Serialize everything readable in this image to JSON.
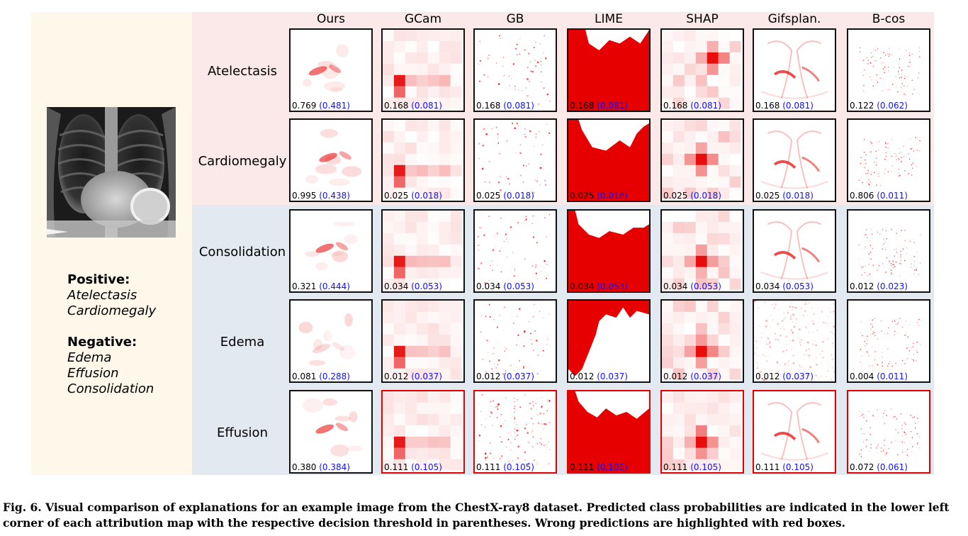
{
  "figure": {
    "columns": [
      "Ours",
      "GCam",
      "GB",
      "LIME",
      "SHAP",
      "Gifsplan.",
      "B-cos"
    ],
    "legend": {
      "positive_title": "Positive:",
      "positive_items": [
        "Atelectasis",
        "Cardiomegaly"
      ],
      "negative_title": "Negative:",
      "negative_items": [
        "Edema",
        "Effusion",
        "Consolidation"
      ]
    },
    "rows": [
      {
        "label": "Atelectasis",
        "group": "positive",
        "cells": [
          {
            "prob": "0.769",
            "thr": "(0.481)",
            "wrong": false
          },
          {
            "prob": "0.168",
            "thr": "(0.081)",
            "wrong": false
          },
          {
            "prob": "0.168",
            "thr": "(0.081)",
            "wrong": false
          },
          {
            "prob": "0.168",
            "thr": "(0.081)",
            "wrong": false
          },
          {
            "prob": "0.168",
            "thr": "(0.081)",
            "wrong": false
          },
          {
            "prob": "0.168",
            "thr": "(0.081)",
            "wrong": false
          },
          {
            "prob": "0.122",
            "thr": "(0.062)",
            "wrong": false
          }
        ]
      },
      {
        "label": "Cardiomegaly",
        "group": "positive",
        "cells": [
          {
            "prob": "0.995",
            "thr": "(0.438)",
            "wrong": false
          },
          {
            "prob": "0.025",
            "thr": "(0.018)",
            "wrong": false
          },
          {
            "prob": "0.025",
            "thr": "(0.018)",
            "wrong": false
          },
          {
            "prob": "0.025",
            "thr": "(0.018)",
            "wrong": false
          },
          {
            "prob": "0.025",
            "thr": "(0.018)",
            "wrong": false
          },
          {
            "prob": "0.025",
            "thr": "(0.018)",
            "wrong": false
          },
          {
            "prob": "0.806",
            "thr": "(0.011)",
            "wrong": false
          }
        ]
      },
      {
        "label": "Consolidation",
        "group": "negative",
        "cells": [
          {
            "prob": "0.321",
            "thr": "(0.444)",
            "wrong": false
          },
          {
            "prob": "0.034",
            "thr": "(0.053)",
            "wrong": false
          },
          {
            "prob": "0.034",
            "thr": "(0.053)",
            "wrong": false
          },
          {
            "prob": "0.034",
            "thr": "(0.053)",
            "wrong": false
          },
          {
            "prob": "0.034",
            "thr": "(0.053)",
            "wrong": false
          },
          {
            "prob": "0.034",
            "thr": "(0.053)",
            "wrong": false
          },
          {
            "prob": "0.012",
            "thr": "(0.023)",
            "wrong": false
          }
        ]
      },
      {
        "label": "Edema",
        "group": "negative",
        "cells": [
          {
            "prob": "0.081",
            "thr": "(0.288)",
            "wrong": false
          },
          {
            "prob": "0.012",
            "thr": "(0.037)",
            "wrong": false
          },
          {
            "prob": "0.012",
            "thr": "(0.037)",
            "wrong": false
          },
          {
            "prob": "0.012",
            "thr": "(0.037)",
            "wrong": false
          },
          {
            "prob": "0.012",
            "thr": "(0.037)",
            "wrong": false
          },
          {
            "prob": "0.012",
            "thr": "(0.037)",
            "wrong": false
          },
          {
            "prob": "0.004",
            "thr": "(0.011)",
            "wrong": false
          }
        ]
      },
      {
        "label": "Effusion",
        "group": "negative",
        "cells": [
          {
            "prob": "0.380",
            "thr": "(0.384)",
            "wrong": false
          },
          {
            "prob": "0.111",
            "thr": "(0.105)",
            "wrong": true
          },
          {
            "prob": "0.111",
            "thr": "(0.105)",
            "wrong": true
          },
          {
            "prob": "0.111",
            "thr": "(0.105)",
            "wrong": true
          },
          {
            "prob": "0.111",
            "thr": "(0.105)",
            "wrong": true
          },
          {
            "prob": "0.111",
            "thr": "(0.105)",
            "wrong": true
          },
          {
            "prob": "0.072",
            "thr": "(0.061)",
            "wrong": true
          }
        ]
      }
    ],
    "caption": "Fig. 6. Visual comparison of explanations for an example image from the ChestX-ray8 dataset. Predicted class probabilities are indicated in the lower left corner of each attribution map with the respective decision threshold in parentheses. Wrong predictions are highlighted with red boxes.",
    "colors": {
      "positive_band": "#fbe9e9",
      "negative_band": "#e3e9f0",
      "legend_panel": "#fef7ea",
      "wrong_border": "#e00000",
      "threshold_text": "#1010ff",
      "attribution_red": "#e60000"
    }
  }
}
